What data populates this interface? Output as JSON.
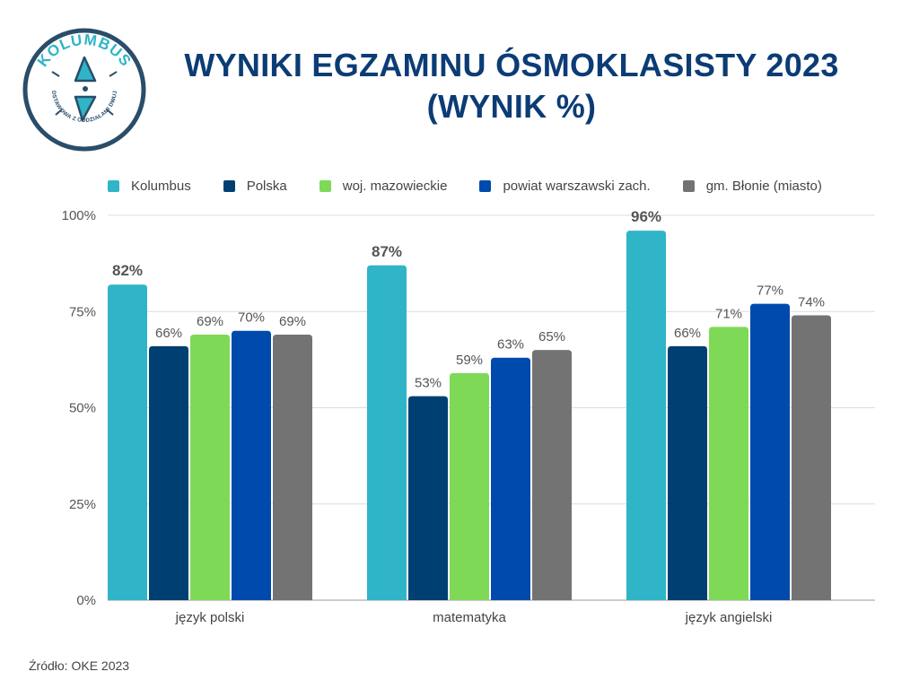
{
  "logo": {
    "name": "KOLUMBUS",
    "subtitle": "SZKOŁA PODSTAWOWA Z ODDZIAŁAMI DWUJĘZYCZNYMI",
    "ring_color": "#2a4d69",
    "arrow_color": "#2fb4c8"
  },
  "title": {
    "line1": "WYNIKI EGZAMINU ÓSMOKLASISTY 2023",
    "line2": "(WYNIK %)"
  },
  "source": "Źródło: OKE 2023",
  "chart_data": {
    "type": "bar",
    "categories": [
      "język polski",
      "matematyka",
      "język angielski"
    ],
    "ylim": [
      0,
      100
    ],
    "yticks": [
      0,
      25,
      50,
      75,
      100
    ],
    "ytick_labels": [
      "0%",
      "25%",
      "50%",
      "75%",
      "100%"
    ],
    "grid": true,
    "legend_position": "top",
    "value_suffix": "%",
    "series": [
      {
        "name": "Kolumbus",
        "color": "#2fb4c8",
        "values": [
          82,
          87,
          96
        ],
        "bold_labels": true
      },
      {
        "name": "Polska",
        "color": "#003f72",
        "values": [
          66,
          53,
          66
        ],
        "bold_labels": false
      },
      {
        "name": "woj. mazowieckie",
        "color": "#7ed957",
        "values": [
          69,
          59,
          71
        ],
        "bold_labels": false
      },
      {
        "name": "powiat warszawski zach.",
        "color": "#004aad",
        "values": [
          70,
          63,
          77
        ],
        "bold_labels": false
      },
      {
        "name": "gm. Błonie (miasto)",
        "color": "#737373",
        "values": [
          69,
          65,
          74
        ],
        "bold_labels": false
      }
    ]
  }
}
